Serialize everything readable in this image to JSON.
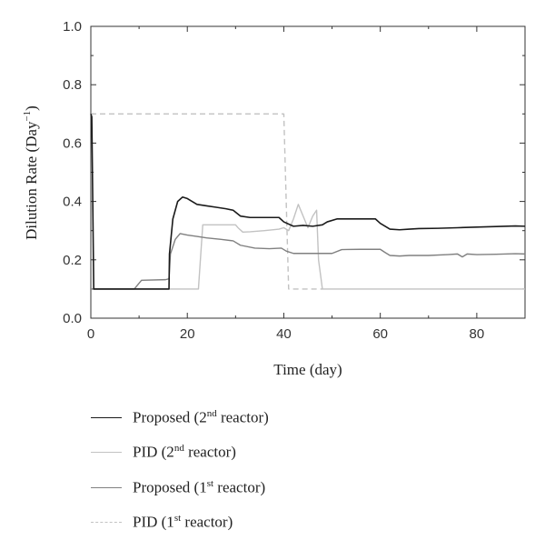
{
  "chart_data": {
    "type": "line",
    "xlabel": "Time (day)",
    "ylabel_main": "Dilution Rate (Day",
    "ylabel_sup": "−1",
    "ylabel_tail": ")",
    "xlim": [
      0,
      90
    ],
    "ylim": [
      0,
      1.0
    ],
    "x_ticks": [
      0,
      20,
      40,
      60,
      80
    ],
    "x_tick_labels": [
      "0",
      "20",
      "40",
      "60",
      "80"
    ],
    "y_ticks": [
      0,
      0.2,
      0.4,
      0.6,
      0.8,
      1.0
    ],
    "y_tick_labels": [
      "0.0",
      "0.2",
      "0.4",
      "0.6",
      "0.8",
      "1.0"
    ],
    "grid": false,
    "legend_position": "below",
    "series": [
      {
        "name": "Proposed (2nd reactor)",
        "legend_main": "Proposed (2",
        "legend_sup": "nd",
        "legend_tail": " reactor)",
        "color": "#1a1a1a",
        "style": "solid",
        "x": [
          0.0,
          0.2,
          0.4,
          0.6,
          0.8,
          16.2,
          16.3,
          17.0,
          18.0,
          19.0,
          20.0,
          22.0,
          24.0,
          26.0,
          28.0,
          29.5,
          31.0,
          33.0,
          36.0,
          39.0,
          40.0,
          42.0,
          44.0,
          46.0,
          48.0,
          49.0,
          51.0,
          55.0,
          59.0,
          60.0,
          62.0,
          64.0,
          66.0,
          68.0,
          72.0,
          76.0,
          80.0,
          84.0,
          88.0,
          90.0
        ],
        "y": [
          0.7,
          0.69,
          0.4,
          0.1,
          0.1,
          0.1,
          0.22,
          0.34,
          0.4,
          0.415,
          0.41,
          0.39,
          0.385,
          0.38,
          0.375,
          0.37,
          0.35,
          0.345,
          0.345,
          0.345,
          0.33,
          0.315,
          0.318,
          0.315,
          0.32,
          0.33,
          0.34,
          0.34,
          0.34,
          0.325,
          0.305,
          0.303,
          0.305,
          0.307,
          0.308,
          0.31,
          0.312,
          0.314,
          0.316,
          0.315
        ]
      },
      {
        "name": "PID (2nd reactor)",
        "legend_main": "PID (2",
        "legend_sup": "nd",
        "legend_tail": " reactor)",
        "color": "#c2c2c2",
        "style": "solid",
        "x": [
          0.0,
          0.5,
          22.3,
          23.2,
          30.0,
          30.5,
          31.5,
          33.0,
          36.0,
          39.0,
          40.0,
          41.0,
          42.0,
          43.0,
          44.0,
          45.0,
          46.0,
          46.8,
          47.2,
          48.0,
          50.0,
          90.0
        ],
        "y": [
          0.1,
          0.1,
          0.1,
          0.32,
          0.32,
          0.31,
          0.295,
          0.296,
          0.3,
          0.305,
          0.31,
          0.3,
          0.34,
          0.39,
          0.35,
          0.31,
          0.35,
          0.37,
          0.2,
          0.1,
          0.1,
          0.1
        ]
      },
      {
        "name": "Proposed (1st reactor)",
        "legend_main": "Proposed (1",
        "legend_sup": "st",
        "legend_tail": " reactor)",
        "color": "#808080",
        "style": "solid",
        "x": [
          0.0,
          9.0,
          10.5,
          15.5,
          16.2,
          16.5,
          17.5,
          18.5,
          20.0,
          22.0,
          24.0,
          27.0,
          29.5,
          31.0,
          34.0,
          37.0,
          39.5,
          40.5,
          42.0,
          46.0,
          50.0,
          52.0,
          56.0,
          60.0,
          61.0,
          62.0,
          64.0,
          66.0,
          70.0,
          74.0,
          76.0,
          77.0,
          78.0,
          80.0,
          84.0,
          88.0,
          90.0
        ],
        "y": [
          0.1,
          0.1,
          0.13,
          0.132,
          0.135,
          0.22,
          0.27,
          0.29,
          0.285,
          0.28,
          0.275,
          0.27,
          0.265,
          0.25,
          0.24,
          0.238,
          0.24,
          0.23,
          0.222,
          0.222,
          0.222,
          0.235,
          0.236,
          0.236,
          0.225,
          0.215,
          0.213,
          0.215,
          0.215,
          0.218,
          0.22,
          0.21,
          0.22,
          0.218,
          0.219,
          0.221,
          0.22
        ]
      },
      {
        "name": "PID (1st reactor)",
        "legend_main": "PID (1",
        "legend_sup": "st",
        "legend_tail": " reactor)",
        "color": "#c2c2c2",
        "style": "dashed",
        "x": [
          0.0,
          40.0,
          41.0,
          48.0
        ],
        "y": [
          0.7,
          0.7,
          0.1,
          0.1
        ]
      }
    ]
  }
}
